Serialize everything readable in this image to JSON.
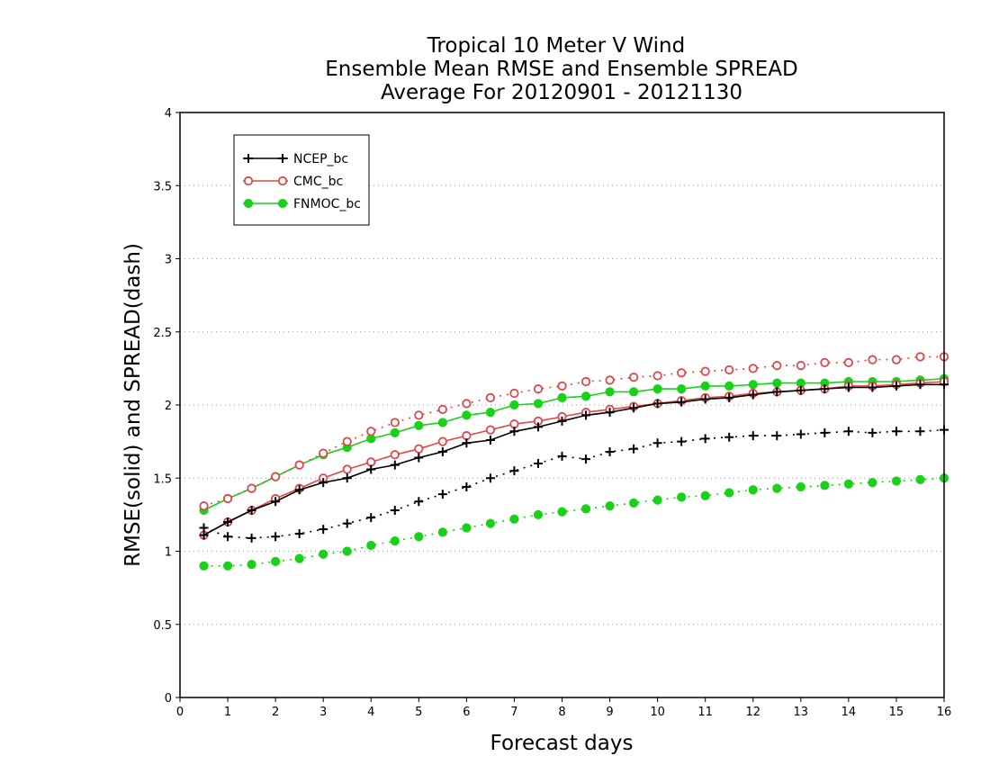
{
  "chart_data": {
    "type": "line",
    "title": [
      "Tropical 10 Meter V Wind",
      "Ensemble Mean RMSE and Ensemble SPREAD",
      "Average For 20120901 - 20121130"
    ],
    "xlabel": "Forecast days",
    "ylabel": "RMSE(solid) and SPREAD(dash)",
    "xlim": [
      0,
      16
    ],
    "ylim": [
      0,
      4
    ],
    "xticks": [
      0,
      1,
      2,
      3,
      4,
      5,
      6,
      7,
      8,
      9,
      10,
      11,
      12,
      13,
      14,
      15,
      16
    ],
    "yticks": [
      0,
      0.5,
      1,
      1.5,
      2,
      2.5,
      3,
      3.5,
      4
    ],
    "ytick_labels": [
      "0",
      "0.5",
      "1",
      "1.5",
      "2",
      "2.5",
      "3",
      "3.5",
      "4"
    ],
    "grid": "horizontal dotted",
    "legend_position": "top-left",
    "x": [
      0.5,
      1,
      1.5,
      2,
      2.5,
      3,
      3.5,
      4,
      4.5,
      5,
      5.5,
      6,
      6.5,
      7,
      7.5,
      8,
      8.5,
      9,
      9.5,
      10,
      10.5,
      11,
      11.5,
      12,
      12.5,
      13,
      13.5,
      14,
      14.5,
      15,
      15.5,
      16
    ],
    "series": [
      {
        "name": "NCEP_bc",
        "color": "#000000",
        "marker": "plus",
        "rmse": [
          1.11,
          1.2,
          1.28,
          1.34,
          1.42,
          1.47,
          1.5,
          1.56,
          1.59,
          1.64,
          1.68,
          1.74,
          1.76,
          1.82,
          1.85,
          1.89,
          1.93,
          1.95,
          1.98,
          2.01,
          2.02,
          2.04,
          2.05,
          2.07,
          2.09,
          2.1,
          2.11,
          2.12,
          2.12,
          2.13,
          2.14,
          2.14
        ],
        "spread": [
          1.16,
          1.1,
          1.09,
          1.1,
          1.12,
          1.15,
          1.19,
          1.23,
          1.28,
          1.34,
          1.39,
          1.44,
          1.5,
          1.55,
          1.6,
          1.65,
          1.63,
          1.68,
          1.7,
          1.74,
          1.75,
          1.77,
          1.78,
          1.79,
          1.79,
          1.8,
          1.81,
          1.82,
          1.81,
          1.82,
          1.82,
          1.83
        ]
      },
      {
        "name": "CMC_bc",
        "color": "#e0474c",
        "marker": "open-circle",
        "rmse": [
          1.11,
          1.2,
          1.28,
          1.36,
          1.43,
          1.5,
          1.56,
          1.61,
          1.66,
          1.7,
          1.75,
          1.79,
          1.83,
          1.87,
          1.89,
          1.92,
          1.95,
          1.97,
          1.99,
          2.01,
          2.03,
          2.05,
          2.06,
          2.08,
          2.09,
          2.1,
          2.11,
          2.13,
          2.13,
          2.14,
          2.15,
          2.16
        ],
        "spread": [
          1.31,
          1.36,
          1.43,
          1.51,
          1.59,
          1.67,
          1.75,
          1.82,
          1.88,
          1.93,
          1.97,
          2.01,
          2.05,
          2.08,
          2.11,
          2.13,
          2.16,
          2.17,
          2.19,
          2.2,
          2.22,
          2.23,
          2.24,
          2.25,
          2.27,
          2.27,
          2.29,
          2.29,
          2.31,
          2.31,
          2.33,
          2.33
        ]
      },
      {
        "name": "FNMOC_bc",
        "color": "#19d119",
        "marker": "filled-circle",
        "rmse": [
          1.28,
          1.36,
          1.43,
          1.51,
          1.59,
          1.66,
          1.71,
          1.77,
          1.81,
          1.86,
          1.88,
          1.93,
          1.95,
          2.0,
          2.01,
          2.05,
          2.06,
          2.09,
          2.09,
          2.11,
          2.11,
          2.13,
          2.13,
          2.14,
          2.15,
          2.15,
          2.15,
          2.16,
          2.16,
          2.16,
          2.17,
          2.18
        ],
        "spread": [
          0.9,
          0.9,
          0.91,
          0.93,
          0.95,
          0.98,
          1.0,
          1.04,
          1.07,
          1.1,
          1.13,
          1.16,
          1.19,
          1.22,
          1.25,
          1.27,
          1.29,
          1.31,
          1.33,
          1.35,
          1.37,
          1.38,
          1.4,
          1.42,
          1.43,
          1.44,
          1.45,
          1.46,
          1.47,
          1.48,
          1.49,
          1.5
        ]
      }
    ]
  }
}
